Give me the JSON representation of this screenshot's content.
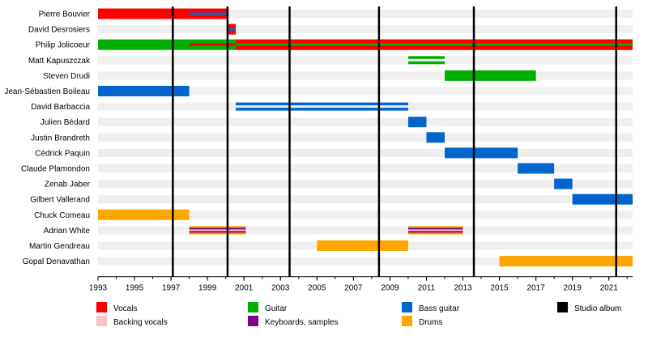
{
  "chart_data": {
    "type": "timeline",
    "members": [
      "Pierre Bouvier",
      "David Desrosiers",
      "Philip Jolicoeur",
      "Matt Kapuszczak",
      "Steven Drudi",
      "Jean-Sébastien Boileau",
      "David Barbaccia",
      "Julien Bédard",
      "Justin Brandreth",
      "Cédrick Paquin",
      "Claude Plamondon",
      "Zenab Jaber",
      "Gilbert Vallerand",
      "Chuck Comeau",
      "Adrian White",
      "Martin Gendreau",
      "Gopal Denavathan"
    ],
    "xlim": [
      1993,
      2022.3
    ],
    "x_ticks": [
      1993,
      1995,
      1997,
      1999,
      2001,
      2003,
      2005,
      2007,
      2009,
      2011,
      2013,
      2015,
      2017,
      2019,
      2021
    ],
    "roles": {
      "vocals": "#ff0000",
      "backing": "#ffc0cb",
      "guitar": "#00b000",
      "keys": "#800080",
      "bass": "#0066cc",
      "drums": "#ffa500"
    },
    "periods": [
      {
        "member": 0,
        "start": 1993,
        "end": 2000.1,
        "main": "vocals",
        "stripe": "bass",
        "stripe_start": 1998,
        "stripe_end": 2000.1
      },
      {
        "member": 1,
        "start": 2000.15,
        "end": 2000.55,
        "main": "vocals",
        "stripe": "bass",
        "stripe_start": 2000.15,
        "stripe_end": 2000.55
      },
      {
        "member": 2,
        "start": 1993,
        "end": 2022.3,
        "main": "guitar"
      },
      {
        "member": 2,
        "start": 2000.55,
        "end": 2022.3,
        "main": "vocals",
        "stripe": "guitar",
        "stripe_start": 2000.55,
        "stripe_end": 2022.3
      },
      {
        "member": 2,
        "start": 1998,
        "end": 2000.55,
        "main": "stripe_only",
        "stripe": "vocals",
        "stripe_start": 1998,
        "stripe_end": 2000.55
      },
      {
        "member": 3,
        "start": 2010,
        "end": 2012,
        "main": "guitar",
        "thin": true
      },
      {
        "member": 4,
        "start": 2012,
        "end": 2017,
        "main": "guitar"
      },
      {
        "member": 5,
        "start": 1993,
        "end": 1998,
        "main": "bass"
      },
      {
        "member": 6,
        "start": 2000.55,
        "end": 2010,
        "main": "bass",
        "thin": true
      },
      {
        "member": 7,
        "start": 2010,
        "end": 2011,
        "main": "bass"
      },
      {
        "member": 8,
        "start": 2011,
        "end": 2012,
        "main": "bass"
      },
      {
        "member": 9,
        "start": 2012,
        "end": 2016,
        "main": "bass"
      },
      {
        "member": 10,
        "start": 2016,
        "end": 2018,
        "main": "bass"
      },
      {
        "member": 11,
        "start": 2018,
        "end": 2019,
        "main": "bass"
      },
      {
        "member": 12,
        "start": 2019,
        "end": 2022.3,
        "main": "bass"
      },
      {
        "member": 13,
        "start": 1993,
        "end": 1998,
        "main": "drums"
      },
      {
        "member": 14,
        "start": 1998,
        "end": 2001.1,
        "main": "multi",
        "stripes": [
          "drums",
          "keys",
          "backing",
          "keys",
          "drums"
        ]
      },
      {
        "member": 14,
        "start": 2010,
        "end": 2013,
        "main": "multi",
        "stripes": [
          "drums",
          "keys",
          "backing",
          "keys",
          "drums"
        ]
      },
      {
        "member": 15,
        "start": 2005,
        "end": 2010,
        "main": "drums"
      },
      {
        "member": 16,
        "start": 2015,
        "end": 2022.3,
        "main": "drums"
      }
    ],
    "albums": [
      1997.1,
      2000.1,
      2003.5,
      2008.4,
      2013.6,
      2021.4
    ],
    "legend": [
      {
        "label": "Vocals",
        "role": "vocals"
      },
      {
        "label": "Backing vocals",
        "role": "backing"
      },
      {
        "label": "Guitar",
        "role": "guitar"
      },
      {
        "label": "Keyboards, samples",
        "role": "keys"
      },
      {
        "label": "Bass guitar",
        "role": "bass"
      },
      {
        "label": "Drums",
        "role": "drums"
      },
      {
        "label": "Studio album",
        "role": "album"
      }
    ],
    "colors": {
      "row_band": "#efefef",
      "album_line": "#000000"
    }
  }
}
